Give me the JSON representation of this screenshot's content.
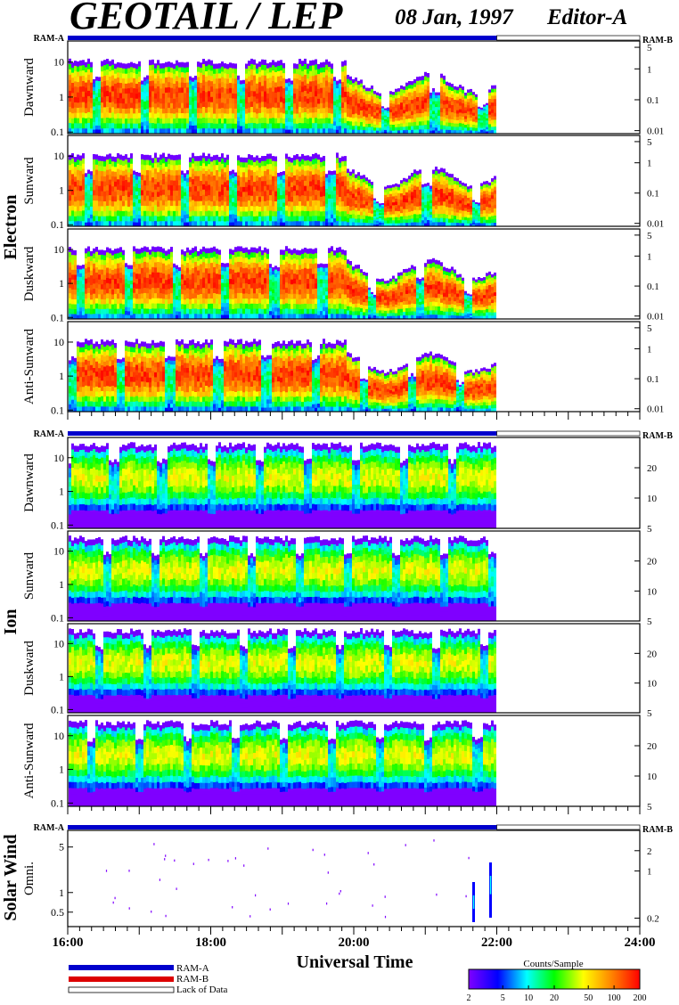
{
  "title": "GEOTAIL / LEP",
  "date": "08 Jan, 1997",
  "editor": "Editor-A",
  "ram_a_label": "RAM-A",
  "ram_b_label": "RAM-B",
  "groups": [
    {
      "name": "Electron",
      "panels": [
        "Dawnward",
        "Sunward",
        "Duskward",
        "Anti-Sunward"
      ]
    },
    {
      "name": "Ion",
      "panels": [
        "Dawnward",
        "Sunward",
        "Duskward",
        "Anti-Sunward"
      ]
    },
    {
      "name": "Solar Wind",
      "panels": [
        "Omni."
      ]
    }
  ],
  "xaxis": {
    "label": "Universal Time",
    "ticks": [
      "16:00",
      "18:00",
      "20:00",
      "22:00",
      "24:00"
    ],
    "range_hours": [
      16,
      24
    ]
  },
  "legend": {
    "ram_a": "RAM-A",
    "ram_b": "RAM-B",
    "lack": "Lack of Data"
  },
  "colorbar": {
    "title": "Counts/Sample",
    "ticks": [
      "2",
      "5",
      "10",
      "20",
      "50",
      "100",
      "200"
    ],
    "range": [
      2,
      200
    ],
    "scale": "log"
  },
  "colors": {
    "ram_a": "#0000cc",
    "ram_b": "#dd0000",
    "ink": "#000000"
  },
  "chart_data": {
    "type": "heatmap",
    "x_unit": "hours UT",
    "data_end_hour": 22.0,
    "panels": [
      {
        "group": "Electron",
        "name": "Dawnward",
        "left_ticks": [
          "0.1",
          "1",
          "10"
        ],
        "left_ylim": [
          0.09,
          40
        ],
        "right_ticks": [
          "0.01",
          "0.1",
          "1",
          "5"
        ],
        "right_ylim": [
          0.008,
          8
        ],
        "scale": "log"
      },
      {
        "group": "Electron",
        "name": "Sunward",
        "left_ticks": [
          "0.1",
          "1",
          "10"
        ],
        "left_ylim": [
          0.09,
          40
        ],
        "right_ticks": [
          "0.01",
          "0.1",
          "1",
          "5"
        ],
        "right_ylim": [
          0.008,
          8
        ],
        "scale": "log"
      },
      {
        "group": "Electron",
        "name": "Duskward",
        "left_ticks": [
          "0.1",
          "1",
          "10"
        ],
        "left_ylim": [
          0.09,
          40
        ],
        "right_ticks": [
          "0.01",
          "0.1",
          "1",
          "5"
        ],
        "right_ylim": [
          0.008,
          8
        ],
        "scale": "log"
      },
      {
        "group": "Electron",
        "name": "Anti-Sunward",
        "left_ticks": [
          "0.1",
          "1",
          "10"
        ],
        "left_ylim": [
          0.09,
          40
        ],
        "right_ticks": [
          "0.01",
          "0.1",
          "1",
          "5"
        ],
        "right_ylim": [
          0.008,
          8
        ],
        "scale": "log"
      },
      {
        "group": "Ion",
        "name": "Dawnward",
        "left_ticks": [
          "0.1",
          "1",
          "10"
        ],
        "left_ylim": [
          0.08,
          40
        ],
        "right_ticks": [
          "5",
          "10",
          "20"
        ],
        "right_ylim": [
          5,
          40
        ],
        "scale": "log"
      },
      {
        "group": "Ion",
        "name": "Sunward",
        "left_ticks": [
          "0.1",
          "1",
          "10"
        ],
        "left_ylim": [
          0.08,
          40
        ],
        "right_ticks": [
          "5",
          "10",
          "20"
        ],
        "right_ylim": [
          5,
          40
        ],
        "scale": "log"
      },
      {
        "group": "Ion",
        "name": "Duskward",
        "left_ticks": [
          "0.1",
          "1",
          "10"
        ],
        "left_ylim": [
          0.08,
          40
        ],
        "right_ticks": [
          "5",
          "10",
          "20"
        ],
        "right_ylim": [
          5,
          40
        ],
        "scale": "log"
      },
      {
        "group": "Ion",
        "name": "Anti-Sunward",
        "left_ticks": [
          "0.1",
          "1",
          "10"
        ],
        "left_ylim": [
          0.08,
          40
        ],
        "right_ticks": [
          "5",
          "10",
          "20"
        ],
        "right_ylim": [
          5,
          40
        ],
        "scale": "log"
      },
      {
        "group": "Solar Wind",
        "name": "Omni.",
        "left_ticks": [
          "0.5",
          "1",
          "5"
        ],
        "left_ylim": [
          0.3,
          9
        ],
        "right_ticks": [
          "0.2",
          "1",
          "2"
        ],
        "right_ylim": [
          0.15,
          4
        ],
        "scale": "log"
      }
    ]
  }
}
